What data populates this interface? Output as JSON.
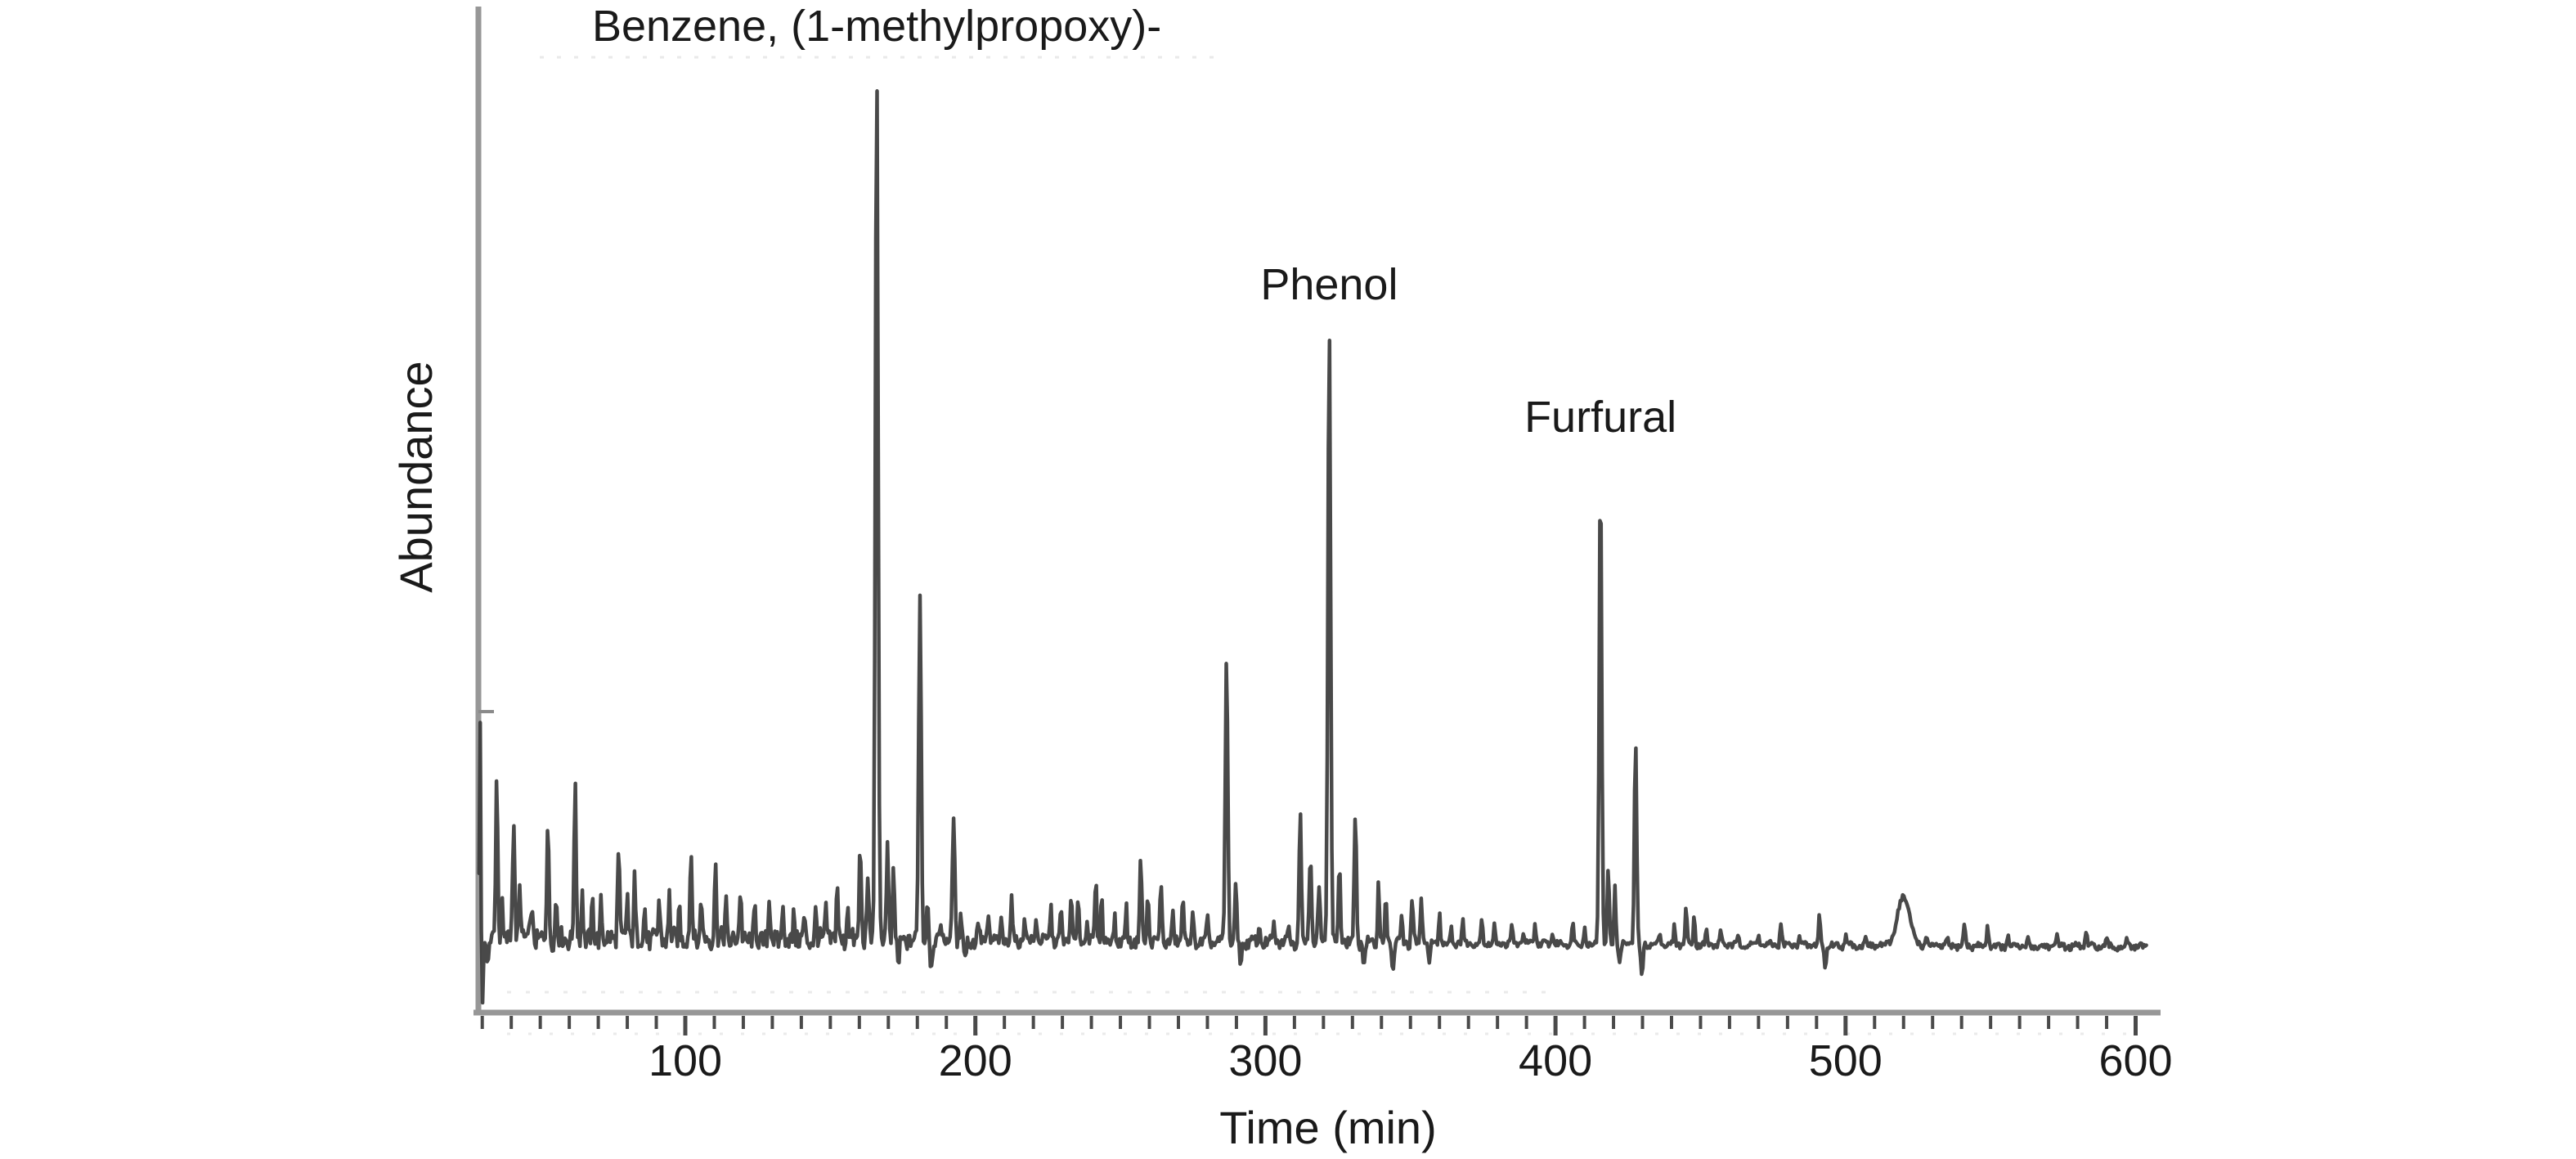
{
  "figure": {
    "background": "#ffffff",
    "trace_color": "#3a3a3a",
    "axis_color": "#979797",
    "tick_color": "#4a4a4a",
    "text_color": "#1a1a1a"
  },
  "chart_data": {
    "type": "line",
    "title": "",
    "xlabel": "Time (min)",
    "ylabel": "Abundance",
    "x_ticks": [
      100,
      200,
      300,
      400,
      500,
      600
    ],
    "x_minor_tick_step_min": 10,
    "x_range_shown_min": [
      29,
      604
    ],
    "y_axis_numeric_labels_shown": false,
    "y_units": "relative abundance, % of tallest peak",
    "legend": "none",
    "grid": "off",
    "peak_annotations": [
      {
        "label": "Benzene, (1-methylpropoxy)-",
        "time_min": 166,
        "rel_abundance_pct": 100
      },
      {
        "label": "Phenol",
        "time_min": 322,
        "rel_abundance_pct": 70.5
      },
      {
        "label": "Furfural",
        "time_min": 415.5,
        "rel_abundance_pct": 53.8
      }
    ],
    "peaks": [
      [
        29.3,
        27,
        0.35
      ],
      [
        29.9,
        -8.7,
        0.45
      ],
      [
        31.5,
        -2,
        0.8
      ],
      [
        35.0,
        19.5,
        0.45
      ],
      [
        36.8,
        4,
        0.4
      ],
      [
        40.8,
        13.5,
        0.5
      ],
      [
        43.0,
        6,
        0.45
      ],
      [
        47.0,
        4,
        0.4
      ],
      [
        52.6,
        13,
        0.5
      ],
      [
        55.5,
        5,
        0.4
      ],
      [
        62.0,
        17,
        0.5
      ],
      [
        64.5,
        6,
        0.4
      ],
      [
        68.0,
        4,
        0.4
      ],
      [
        71.0,
        4.5,
        0.4
      ],
      [
        77.0,
        10,
        0.5
      ],
      [
        80.0,
        5,
        0.4
      ],
      [
        82.5,
        7,
        0.45
      ],
      [
        86.0,
        3.5,
        0.4
      ],
      [
        91.0,
        4.5,
        0.4
      ],
      [
        94.5,
        5,
        0.4
      ],
      [
        98.0,
        4,
        0.4
      ],
      [
        102.0,
        9.8,
        0.5
      ],
      [
        105.5,
        5.5,
        0.4
      ],
      [
        110.4,
        8.4,
        0.5
      ],
      [
        114.0,
        4.5,
        0.4
      ],
      [
        119.0,
        5.5,
        0.45
      ],
      [
        124.0,
        3.5,
        0.4
      ],
      [
        129.0,
        4.5,
        0.45
      ],
      [
        133.5,
        3.8,
        0.4
      ],
      [
        137.5,
        3.5,
        0.4
      ],
      [
        141.0,
        2.5,
        0.4
      ],
      [
        145.0,
        3.2,
        0.4
      ],
      [
        148.5,
        4.2,
        0.4
      ],
      [
        152.4,
        6.5,
        0.45
      ],
      [
        156.0,
        4.5,
        0.4
      ],
      [
        160.3,
        11,
        0.5
      ],
      [
        163.0,
        7,
        0.45
      ],
      [
        166.0,
        100,
        0.65
      ],
      [
        169.7,
        11,
        0.5
      ],
      [
        171.8,
        8,
        0.45
      ],
      [
        173.5,
        -3,
        0.5
      ],
      [
        180.9,
        40,
        0.6
      ],
      [
        183.5,
        5,
        0.45
      ],
      [
        184.8,
        -3.5,
        0.5
      ],
      [
        188.0,
        3,
        0.4
      ],
      [
        192.5,
        15,
        0.55
      ],
      [
        195.0,
        4,
        0.4
      ],
      [
        196.5,
        -2,
        0.5
      ],
      [
        201.0,
        2.5,
        0.4
      ],
      [
        204.5,
        3,
        0.4
      ],
      [
        209.0,
        2.5,
        0.4
      ],
      [
        212.5,
        4.8,
        0.45
      ],
      [
        217.0,
        3,
        0.4
      ],
      [
        221.0,
        3.2,
        0.4
      ],
      [
        226.0,
        4.2,
        0.45
      ],
      [
        229.5,
        3.6,
        0.4
      ],
      [
        233.0,
        5.6,
        0.45
      ],
      [
        235.5,
        5.0,
        0.4
      ],
      [
        238.5,
        3,
        0.4
      ],
      [
        241.5,
        7,
        0.45
      ],
      [
        243.5,
        6,
        0.4
      ],
      [
        248.0,
        3,
        0.4
      ],
      [
        252.0,
        4,
        0.4
      ],
      [
        257.0,
        9.3,
        0.5
      ],
      [
        259.5,
        6,
        0.4
      ],
      [
        264.0,
        7,
        0.45
      ],
      [
        268.0,
        3,
        0.4
      ],
      [
        271.5,
        5.5,
        0.45
      ],
      [
        275.0,
        3,
        0.4
      ],
      [
        280.0,
        2.5,
        0.4
      ],
      [
        286.6,
        32.6,
        0.6
      ],
      [
        289.8,
        6.8,
        0.45
      ],
      [
        291.5,
        -2.5,
        0.5
      ],
      [
        298.0,
        2,
        0.4
      ],
      [
        303.0,
        2.2,
        0.4
      ],
      [
        308.0,
        2.4,
        0.4
      ],
      [
        312.0,
        14.7,
        0.55
      ],
      [
        315.5,
        10,
        0.6
      ],
      [
        318.5,
        6,
        0.5
      ],
      [
        322.0,
        70.5,
        0.65
      ],
      [
        325.5,
        9,
        0.5
      ],
      [
        331.0,
        14.2,
        0.55
      ],
      [
        334.0,
        -2.5,
        0.5
      ],
      [
        339.0,
        7,
        0.45
      ],
      [
        341.5,
        6,
        0.4
      ],
      [
        344.0,
        -3,
        0.5
      ],
      [
        347.0,
        3,
        0.4
      ],
      [
        350.6,
        5.1,
        0.45
      ],
      [
        353.7,
        5.1,
        0.45
      ],
      [
        356.5,
        -2,
        0.45
      ],
      [
        360.0,
        3.7,
        0.4
      ],
      [
        364.0,
        2,
        0.4
      ],
      [
        368.0,
        2.8,
        0.4
      ],
      [
        374.6,
        3.1,
        0.4
      ],
      [
        379.0,
        2,
        0.4
      ],
      [
        385.0,
        2,
        0.4
      ],
      [
        389.0,
        1.5,
        0.4
      ],
      [
        393.0,
        2.3,
        0.4
      ],
      [
        399.0,
        1.5,
        0.4
      ],
      [
        406.0,
        2.8,
        0.4
      ],
      [
        410.0,
        2,
        0.4
      ],
      [
        415.5,
        53.8,
        0.6
      ],
      [
        418.2,
        8.4,
        0.5
      ],
      [
        420.5,
        6.5,
        0.45
      ],
      [
        422.0,
        -2,
        0.5
      ],
      [
        427.6,
        23.3,
        0.55
      ],
      [
        429.8,
        -4,
        0.5
      ],
      [
        436.0,
        1.5,
        0.4
      ],
      [
        441.0,
        2,
        0.4
      ],
      [
        445.0,
        4.4,
        0.45
      ],
      [
        447.8,
        3.7,
        0.4
      ],
      [
        452.0,
        1.5,
        0.4
      ],
      [
        457.0,
        1.8,
        0.4
      ],
      [
        463.0,
        1.2,
        0.4
      ],
      [
        470.0,
        1.5,
        0.4
      ],
      [
        477.7,
        2.5,
        0.45
      ],
      [
        484.0,
        1.2,
        0.4
      ],
      [
        491.0,
        3.4,
        0.45
      ],
      [
        493.0,
        -2.5,
        0.5
      ],
      [
        500.0,
        1.2,
        0.4
      ],
      [
        507.0,
        1.2,
        0.4
      ],
      [
        520.0,
        5.6,
        3.0
      ],
      [
        528.0,
        1.0,
        0.5
      ],
      [
        535.0,
        0.8,
        0.4
      ],
      [
        541.0,
        2.3,
        0.5
      ],
      [
        549.0,
        2.3,
        0.5
      ],
      [
        556.0,
        1.0,
        0.4
      ],
      [
        563.0,
        0.8,
        0.4
      ],
      [
        573.0,
        1.4,
        0.5
      ],
      [
        583.0,
        1.8,
        0.5
      ],
      [
        590.0,
        0.8,
        0.4
      ],
      [
        597.0,
        1.0,
        0.5
      ]
    ]
  }
}
